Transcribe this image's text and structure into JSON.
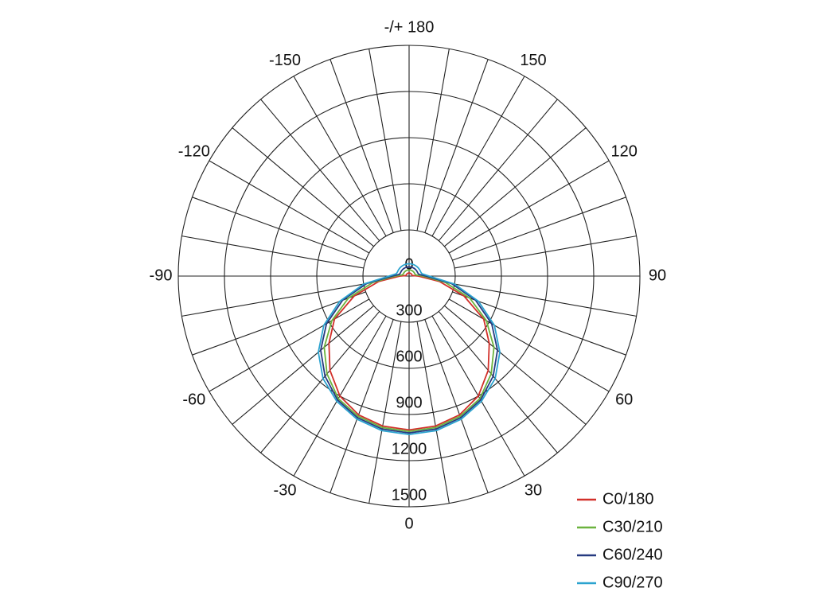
{
  "chart_data": {
    "type": "polar",
    "theta": [
      -180,
      -170,
      -160,
      -150,
      -140,
      -130,
      -120,
      -110,
      -100,
      -90,
      -80,
      -70,
      -60,
      -50,
      -40,
      -30,
      -20,
      -10,
      0,
      10,
      20,
      30,
      40,
      50,
      60,
      70,
      80,
      90,
      100,
      110,
      120,
      130,
      140,
      150,
      160,
      170,
      180
    ],
    "rlim": [
      0,
      1500
    ],
    "rticks": [
      0,
      300,
      600,
      900,
      1200,
      1500
    ],
    "thetaticks": [
      0,
      30,
      60,
      90,
      120,
      150,
      {
        "value": 180,
        "label": "-/+ 180"
      },
      -150,
      -120,
      -90,
      -60,
      -30
    ],
    "series": [
      {
        "name": "C0/180",
        "color": "#d2302a",
        "values": [
          20,
          20,
          20,
          20,
          20,
          20,
          20,
          20,
          20,
          60,
          200,
          380,
          560,
          680,
          800,
          900,
          960,
          990,
          1000,
          990,
          960,
          900,
          800,
          680,
          560,
          380,
          200,
          60,
          20,
          20,
          20,
          20,
          20,
          20,
          20,
          20,
          20
        ]
      },
      {
        "name": "C30/210",
        "color": "#6cb33f",
        "values": [
          40,
          40,
          40,
          40,
          40,
          40,
          40,
          40,
          45,
          90,
          240,
          420,
          580,
          720,
          830,
          920,
          970,
          1000,
          1010,
          1000,
          970,
          920,
          830,
          720,
          580,
          420,
          240,
          90,
          45,
          40,
          40,
          40,
          40,
          40,
          40,
          40,
          40
        ]
      },
      {
        "name": "C60/240",
        "color": "#263a80",
        "values": [
          60,
          60,
          60,
          60,
          60,
          60,
          60,
          60,
          65,
          110,
          280,
          460,
          620,
          750,
          850,
          930,
          980,
          1010,
          1020,
          1010,
          980,
          930,
          850,
          750,
          620,
          460,
          280,
          110,
          65,
          60,
          60,
          60,
          60,
          60,
          60,
          60,
          60
        ]
      },
      {
        "name": "C90/270",
        "color": "#2ba3cf",
        "values": [
          80,
          80,
          80,
          80,
          80,
          80,
          80,
          80,
          85,
          130,
          300,
          480,
          640,
          770,
          870,
          940,
          990,
          1020,
          1030,
          1020,
          990,
          940,
          870,
          770,
          640,
          480,
          300,
          130,
          85,
          80,
          80,
          80,
          80,
          80,
          80,
          80,
          80
        ]
      }
    ],
    "legend": "lower right"
  }
}
